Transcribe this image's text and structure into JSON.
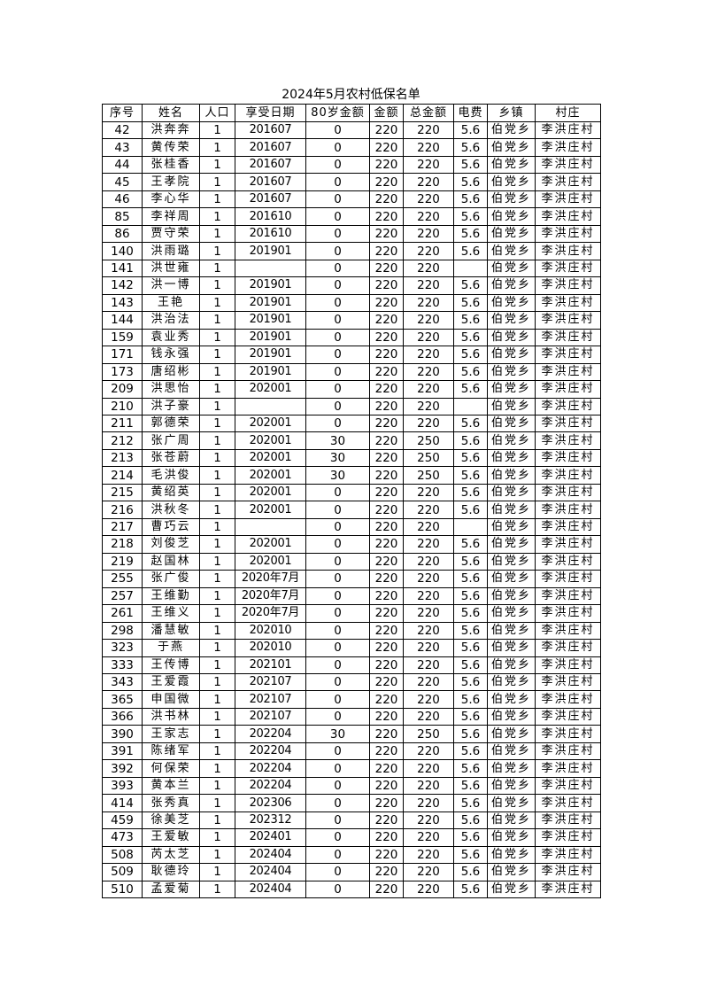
{
  "title": "2024年5月农村低保名单",
  "headers": [
    "序号",
    "姓名",
    "人口",
    "享受日期",
    "80岁金额",
    "金额",
    "总金额",
    "电费",
    "乡镇",
    "村庄"
  ],
  "rows": [
    [
      "42",
      "洪奔奔",
      "1",
      "201607",
      "0",
      "220",
      "220",
      "5.6",
      "伯党乡",
      "李洪庄村"
    ],
    [
      "43",
      "黄传荣",
      "1",
      "201607",
      "0",
      "220",
      "220",
      "5.6",
      "伯党乡",
      "李洪庄村"
    ],
    [
      "44",
      "张桂香",
      "1",
      "201607",
      "0",
      "220",
      "220",
      "5.6",
      "伯党乡",
      "李洪庄村"
    ],
    [
      "45",
      "王孝院",
      "1",
      "201607",
      "0",
      "220",
      "220",
      "5.6",
      "伯党乡",
      "李洪庄村"
    ],
    [
      "46",
      "李心华",
      "1",
      "201607",
      "0",
      "220",
      "220",
      "5.6",
      "伯党乡",
      "李洪庄村"
    ],
    [
      "85",
      "李祥周",
      "1",
      "201610",
      "0",
      "220",
      "220",
      "5.6",
      "伯党乡",
      "李洪庄村"
    ],
    [
      "86",
      "贾守荣",
      "1",
      "201610",
      "0",
      "220",
      "220",
      "5.6",
      "伯党乡",
      "李洪庄村"
    ],
    [
      "140",
      "洪雨璐",
      "1",
      "201901",
      "0",
      "220",
      "220",
      "5.6",
      "伯党乡",
      "李洪庄村"
    ],
    [
      "141",
      "洪世雍",
      "1",
      "",
      "0",
      "220",
      "220",
      "",
      "伯党乡",
      "李洪庄村"
    ],
    [
      "142",
      "洪一博",
      "1",
      "201901",
      "0",
      "220",
      "220",
      "5.6",
      "伯党乡",
      "李洪庄村"
    ],
    [
      "143",
      "王艳",
      "1",
      "201901",
      "0",
      "220",
      "220",
      "5.6",
      "伯党乡",
      "李洪庄村"
    ],
    [
      "144",
      "洪治法",
      "1",
      "201901",
      "0",
      "220",
      "220",
      "5.6",
      "伯党乡",
      "李洪庄村"
    ],
    [
      "159",
      "袁业秀",
      "1",
      "201901",
      "0",
      "220",
      "220",
      "5.6",
      "伯党乡",
      "李洪庄村"
    ],
    [
      "171",
      "钱永强",
      "1",
      "201901",
      "0",
      "220",
      "220",
      "5.6",
      "伯党乡",
      "李洪庄村"
    ],
    [
      "173",
      "唐绍彬",
      "1",
      "201901",
      "0",
      "220",
      "220",
      "5.6",
      "伯党乡",
      "李洪庄村"
    ],
    [
      "209",
      "洪思怡",
      "1",
      "202001",
      "0",
      "220",
      "220",
      "5.6",
      "伯党乡",
      "李洪庄村"
    ],
    [
      "210",
      "洪子豪",
      "1",
      "",
      "0",
      "220",
      "220",
      "",
      "伯党乡",
      "李洪庄村"
    ],
    [
      "211",
      "郭德荣",
      "1",
      "202001",
      "0",
      "220",
      "220",
      "5.6",
      "伯党乡",
      "李洪庄村"
    ],
    [
      "212",
      "张广周",
      "1",
      "202001",
      "30",
      "220",
      "250",
      "5.6",
      "伯党乡",
      "李洪庄村"
    ],
    [
      "213",
      "张苍蔚",
      "1",
      "202001",
      "30",
      "220",
      "250",
      "5.6",
      "伯党乡",
      "李洪庄村"
    ],
    [
      "214",
      "毛洪俊",
      "1",
      "202001",
      "30",
      "220",
      "250",
      "5.6",
      "伯党乡",
      "李洪庄村"
    ],
    [
      "215",
      "黄绍英",
      "1",
      "202001",
      "0",
      "220",
      "220",
      "5.6",
      "伯党乡",
      "李洪庄村"
    ],
    [
      "216",
      "洪秋冬",
      "1",
      "202001",
      "0",
      "220",
      "220",
      "5.6",
      "伯党乡",
      "李洪庄村"
    ],
    [
      "217",
      "曹巧云",
      "1",
      "",
      "0",
      "220",
      "220",
      "",
      "伯党乡",
      "李洪庄村"
    ],
    [
      "218",
      "刘俊芝",
      "1",
      "202001",
      "0",
      "220",
      "220",
      "5.6",
      "伯党乡",
      "李洪庄村"
    ],
    [
      "219",
      "赵国林",
      "1",
      "202001",
      "0",
      "220",
      "220",
      "5.6",
      "伯党乡",
      "李洪庄村"
    ],
    [
      "255",
      "张广俊",
      "1",
      "2020年7月",
      "0",
      "220",
      "220",
      "5.6",
      "伯党乡",
      "李洪庄村"
    ],
    [
      "257",
      "王维勤",
      "1",
      "2020年7月",
      "0",
      "220",
      "220",
      "5.6",
      "伯党乡",
      "李洪庄村"
    ],
    [
      "261",
      "王维义",
      "1",
      "2020年7月",
      "0",
      "220",
      "220",
      "5.6",
      "伯党乡",
      "李洪庄村"
    ],
    [
      "298",
      "潘慧敏",
      "1",
      "202010",
      "0",
      "220",
      "220",
      "5.6",
      "伯党乡",
      "李洪庄村"
    ],
    [
      "323",
      "于燕",
      "1",
      "202010",
      "0",
      "220",
      "220",
      "5.6",
      "伯党乡",
      "李洪庄村"
    ],
    [
      "333",
      "王传博",
      "1",
      "202101",
      "0",
      "220",
      "220",
      "5.6",
      "伯党乡",
      "李洪庄村"
    ],
    [
      "343",
      "王爱霞",
      "1",
      "202107",
      "0",
      "220",
      "220",
      "5.6",
      "伯党乡",
      "李洪庄村"
    ],
    [
      "365",
      "申国微",
      "1",
      "202107",
      "0",
      "220",
      "220",
      "5.6",
      "伯党乡",
      "李洪庄村"
    ],
    [
      "366",
      "洪书林",
      "1",
      "202107",
      "0",
      "220",
      "220",
      "5.6",
      "伯党乡",
      "李洪庄村"
    ],
    [
      "390",
      "王家志",
      "1",
      "202204",
      "30",
      "220",
      "250",
      "5.6",
      "伯党乡",
      "李洪庄村"
    ],
    [
      "391",
      "陈绪军",
      "1",
      "202204",
      "0",
      "220",
      "220",
      "5.6",
      "伯党乡",
      "李洪庄村"
    ],
    [
      "392",
      "何保荣",
      "1",
      "202204",
      "0",
      "220",
      "220",
      "5.6",
      "伯党乡",
      "李洪庄村"
    ],
    [
      "393",
      "黄本兰",
      "1",
      "202204",
      "0",
      "220",
      "220",
      "5.6",
      "伯党乡",
      "李洪庄村"
    ],
    [
      "414",
      "张秀真",
      "1",
      "202306",
      "0",
      "220",
      "220",
      "5.6",
      "伯党乡",
      "李洪庄村"
    ],
    [
      "459",
      "徐美芝",
      "1",
      "202312",
      "0",
      "220",
      "220",
      "5.6",
      "伯党乡",
      "李洪庄村"
    ],
    [
      "473",
      "王爱敏",
      "1",
      "202401",
      "0",
      "220",
      "220",
      "5.6",
      "伯党乡",
      "李洪庄村"
    ],
    [
      "508",
      "芮太芝",
      "1",
      "202404",
      "0",
      "220",
      "220",
      "5.6",
      "伯党乡",
      "李洪庄村"
    ],
    [
      "509",
      "耿德玲",
      "1",
      "202404",
      "0",
      "220",
      "220",
      "5.6",
      "伯党乡",
      "李洪庄村"
    ],
    [
      "510",
      "孟爱菊",
      "1",
      "202404",
      "0",
      "220",
      "220",
      "5.6",
      "伯党乡",
      "李洪庄村"
    ]
  ]
}
